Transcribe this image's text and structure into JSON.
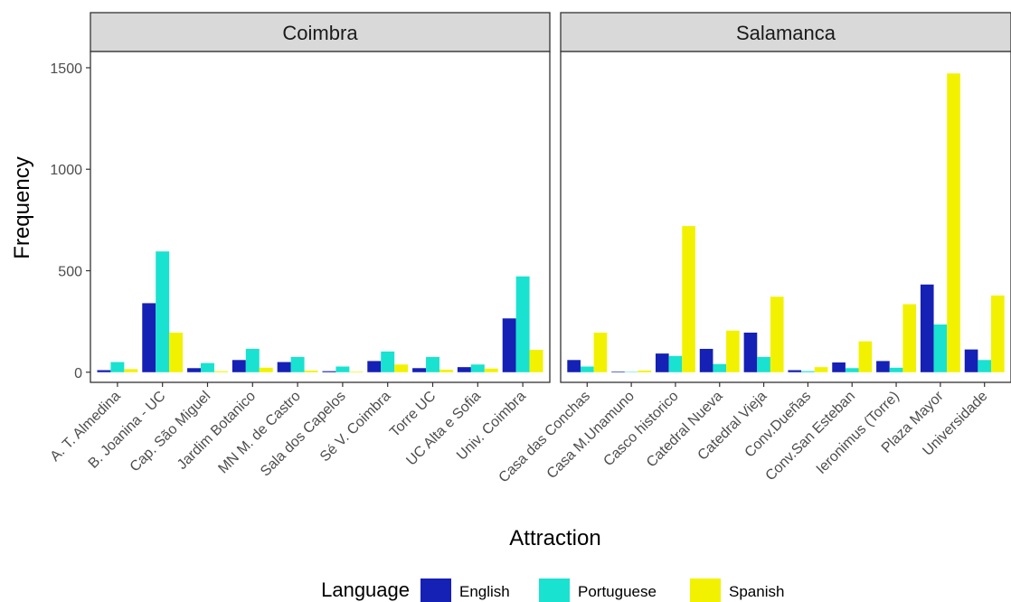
{
  "chart_data": {
    "type": "bar",
    "xlabel": "Attraction",
    "ylabel": "Frequency",
    "ylim": [
      -50,
      1580
    ],
    "yticks": [
      0,
      500,
      1000,
      1500
    ],
    "grid": false,
    "legend": {
      "title": "Language",
      "position": "bottom",
      "entries": [
        {
          "name": "English",
          "color": "#1520B5"
        },
        {
          "name": "Portuguese",
          "color": "#19E2D0"
        },
        {
          "name": "Spanish",
          "color": "#F2F200"
        }
      ]
    },
    "panels": [
      {
        "title": "Coimbra",
        "categories": [
          "A. T. Almedina",
          "B. Joanina - UC",
          "Cap. São Miguel",
          "Jardim Botanico",
          "MN M. de Castro",
          "Sala dos Capelos",
          "Sé V. Coimbra",
          "Torre UC",
          "UC Alta e Sofia",
          "Univ. Coimbra"
        ],
        "series": [
          {
            "name": "English",
            "values": [
              10,
              340,
              20,
              60,
              50,
              5,
              55,
              20,
              25,
              265
            ]
          },
          {
            "name": "Portuguese",
            "values": [
              50,
              595,
              45,
              115,
              75,
              28,
              102,
              75,
              38,
              472
            ]
          },
          {
            "name": "Spanish",
            "values": [
              15,
              195,
              5,
              22,
              8,
              3,
              38,
              12,
              18,
              110
            ]
          }
        ]
      },
      {
        "title": "Salamanca",
        "categories": [
          "Casa das Conchas",
          "Casa M.Unamuno",
          "Casco historico",
          "Catedral Nueva",
          "Catedral Vieja",
          "Conv.Dueñas",
          "Conv.San Esteban",
          "Ieronimus (Torre)",
          "Plaza Mayor",
          "Universidade"
        ],
        "series": [
          {
            "name": "English",
            "values": [
              60,
              3,
              92,
              115,
              195,
              10,
              48,
              55,
              432,
              112
            ]
          },
          {
            "name": "Portuguese",
            "values": [
              28,
              2,
              80,
              40,
              75,
              5,
              20,
              22,
              235,
              60
            ]
          },
          {
            "name": "Spanish",
            "values": [
              195,
              8,
              720,
              205,
              372,
              25,
              152,
              335,
              1472,
              378
            ]
          }
        ]
      }
    ]
  }
}
